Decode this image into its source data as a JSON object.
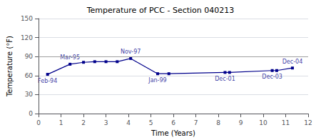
{
  "chart_data": {
    "type": "line",
    "title": "Temperature of PCC - Section 040213",
    "xlabel": "Time (Years)",
    "ylabel": "Temperature (°F)",
    "x": [
      0.4,
      1.4,
      2.0,
      2.5,
      3.0,
      3.5,
      4.1,
      5.3,
      5.8,
      8.3,
      8.5,
      10.4,
      10.6,
      11.3
    ],
    "values": [
      62,
      78,
      81,
      82,
      82,
      82,
      87,
      63,
      63,
      65,
      65,
      68,
      68,
      72
    ],
    "color": "#00008B",
    "marker": "square",
    "xlim": [
      0,
      12
    ],
    "ylim": [
      0,
      150
    ],
    "xticks": [
      0,
      1,
      2,
      3,
      4,
      5,
      6,
      7,
      8,
      9,
      10,
      11,
      12
    ],
    "yticks": [
      0,
      30,
      60,
      90,
      120,
      150
    ],
    "grid": "y",
    "reference_line": {
      "value": 90,
      "color": "#A0A0A0"
    },
    "annotations": [
      {
        "text": "Feb-94",
        "x": 0.4,
        "y": 62,
        "position": "below"
      },
      {
        "text": "Mar-95",
        "x": 1.4,
        "y": 78,
        "position": "above"
      },
      {
        "text": "Nov-97",
        "x": 4.1,
        "y": 87,
        "position": "above"
      },
      {
        "text": "Jan-99",
        "x": 5.3,
        "y": 63,
        "position": "below"
      },
      {
        "text": "Dec-01",
        "x": 8.3,
        "y": 65,
        "position": "below"
      },
      {
        "text": "Dec-03",
        "x": 10.4,
        "y": 68,
        "position": "below"
      },
      {
        "text": "Dec-04",
        "x": 11.3,
        "y": 72,
        "position": "above"
      }
    ]
  }
}
